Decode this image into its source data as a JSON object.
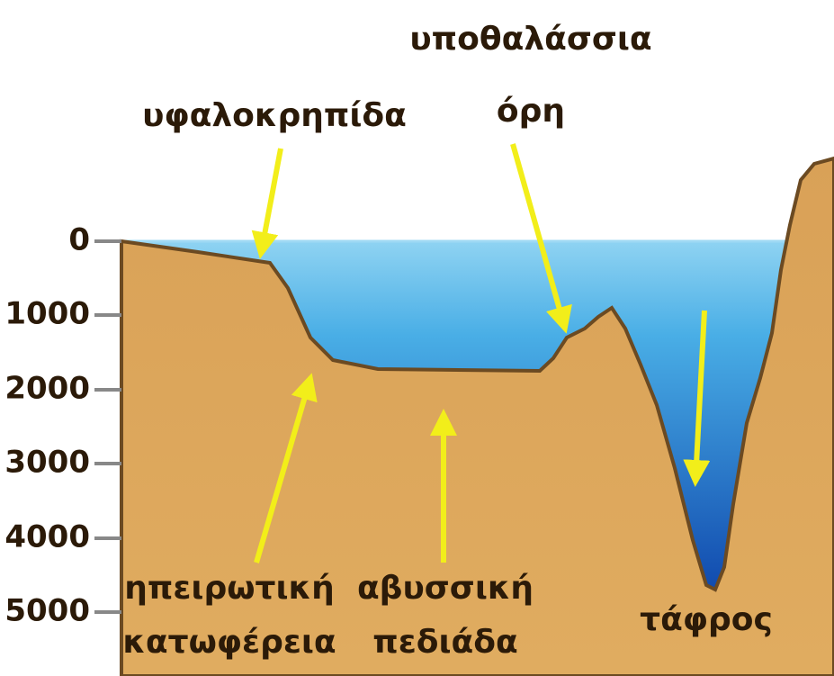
{
  "depth_axis": {
    "ticks": [
      "0",
      "1000",
      "2000",
      "3000",
      "4000",
      "5000"
    ]
  },
  "labels": {
    "shelf": "υφαλοκρηπίδα",
    "seamounts": [
      "υποθαλάσσια",
      "όρη"
    ],
    "slope": [
      "ηπειρωτική",
      "κατωφέρεια"
    ],
    "abyssal_plain": [
      "αβυσσική",
      "πεδιάδα"
    ],
    "trench": "τάφρος"
  }
}
